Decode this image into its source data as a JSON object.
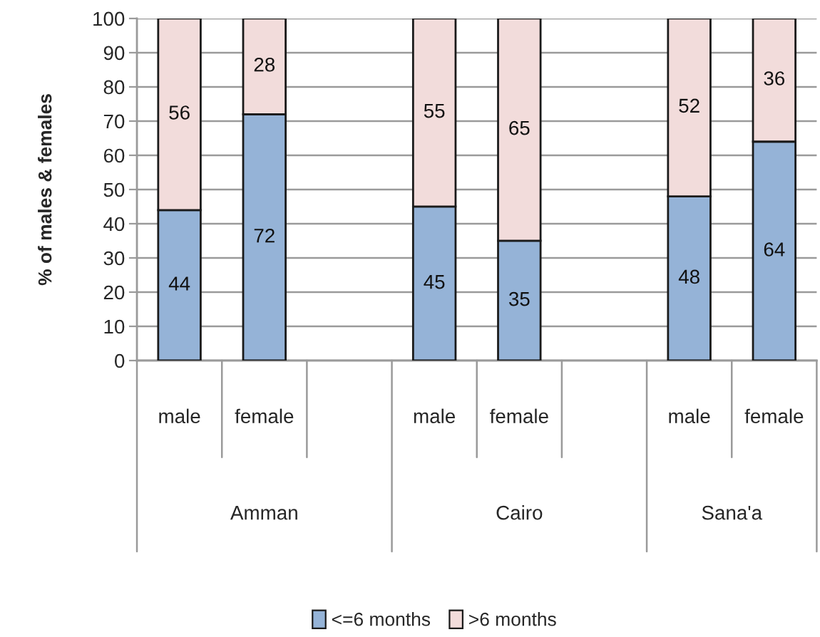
{
  "chart_data": {
    "type": "bar",
    "stacked": true,
    "ylabel": "% of males & females",
    "categories": [
      "male",
      "female",
      null,
      "male",
      "female",
      null,
      "male",
      "female"
    ],
    "series": [
      {
        "name": "<=6 months",
        "color": "#95b3d7",
        "values": [
          44,
          72,
          null,
          45,
          35,
          null,
          48,
          64
        ]
      },
      {
        "name": ">6 months",
        "color": "#f2dcdb",
        "values": [
          56,
          28,
          null,
          55,
          65,
          null,
          52,
          36
        ]
      }
    ],
    "ylim": [
      0,
      100
    ],
    "yticks": [
      0,
      10,
      20,
      30,
      40,
      50,
      60,
      70,
      80,
      90,
      100
    ],
    "grid": "y",
    "legend": "bottom",
    "data_labels": true,
    "annotations": [
      "Amman",
      "Cairo",
      "Sana'a"
    ]
  }
}
